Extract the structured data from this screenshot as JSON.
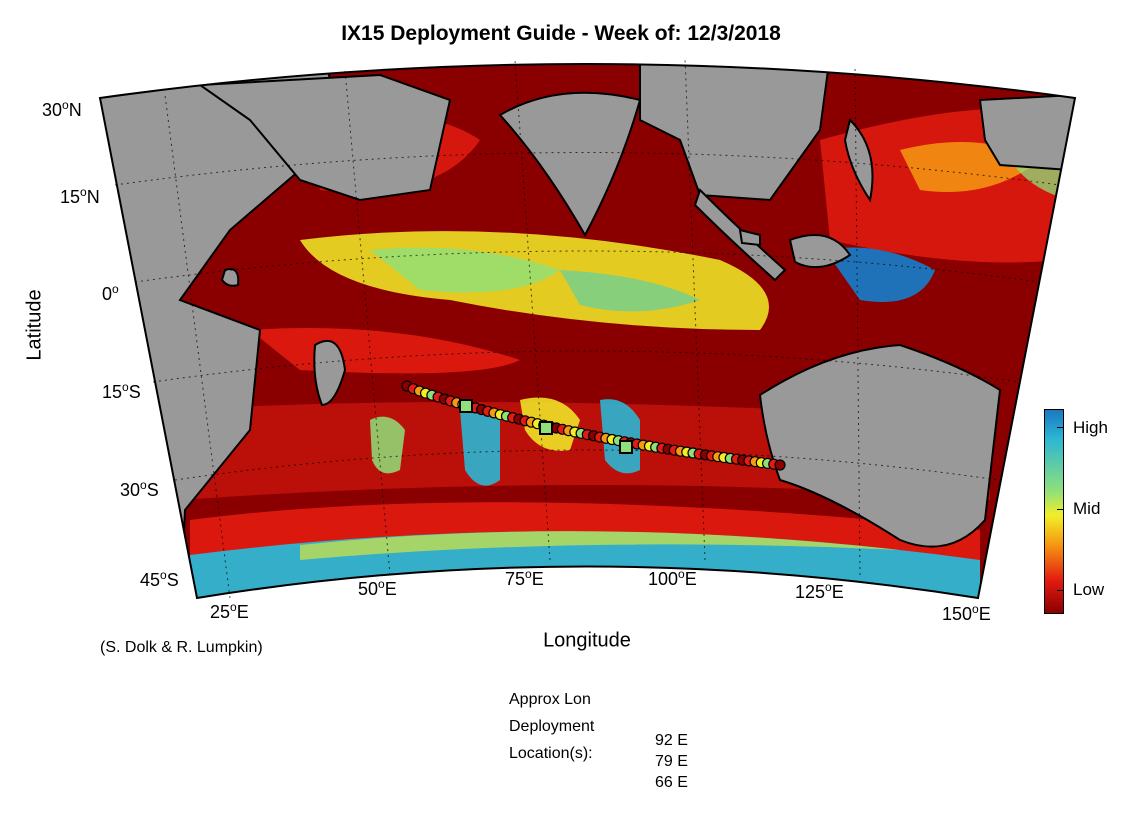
{
  "title": "IX15 Deployment Guide - Week of: 12/3/2018",
  "axes": {
    "ylabel": "Latitude",
    "xlabel": "Longitude",
    "lat_ticks": [
      {
        "deg": "30",
        "hemi": "N"
      },
      {
        "deg": "15",
        "hemi": "N"
      },
      {
        "deg": "0",
        "hemi": ""
      },
      {
        "deg": "15",
        "hemi": "S"
      },
      {
        "deg": "30",
        "hemi": "S"
      },
      {
        "deg": "45",
        "hemi": "S"
      }
    ],
    "lon_ticks": [
      {
        "deg": "25",
        "hemi": "E"
      },
      {
        "deg": "50",
        "hemi": "E"
      },
      {
        "deg": "75",
        "hemi": "E"
      },
      {
        "deg": "100",
        "hemi": "E"
      },
      {
        "deg": "125",
        "hemi": "E"
      },
      {
        "deg": "150",
        "hemi": "E"
      }
    ]
  },
  "colorbar": {
    "high": "High",
    "mid": "Mid",
    "low": "Low"
  },
  "credit": "(S. Dolk & R. Lumpkin)",
  "deployment": {
    "line1": "Approx Lon",
    "line2": "Deployment",
    "line3": "Location(s):",
    "locations": [
      "92 E",
      "79 E",
      "66 E"
    ]
  },
  "colors": {
    "land": "#999999",
    "ocean_low": "#8a0000",
    "ocean_high": "#1a78c2"
  }
}
